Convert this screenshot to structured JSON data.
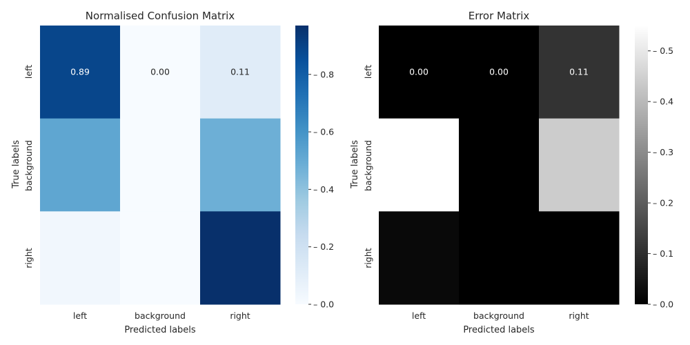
{
  "chart_data": [
    {
      "type": "heatmap",
      "title": "Normalised Confusion Matrix",
      "xlabel": "Predicted labels",
      "ylabel": "True labels",
      "x_categories": [
        "left",
        "background",
        "right"
      ],
      "y_categories": [
        "left",
        "background",
        "right"
      ],
      "values": [
        [
          0.89,
          0.0,
          0.11
        ],
        [
          0.52,
          0.0,
          0.48
        ],
        [
          0.03,
          0.0,
          0.97
        ]
      ],
      "annotated_rows": [
        0
      ],
      "cell_text": [
        "0.89",
        "0.00",
        "0.11"
      ],
      "colormap": "Blues",
      "colorbar": {
        "min": 0.0,
        "max": 0.97,
        "ticks": [
          "0.0",
          "0.2",
          "0.4",
          "0.6",
          "0.8"
        ]
      }
    },
    {
      "type": "heatmap",
      "title": "Error Matrix",
      "xlabel": "Predicted labels",
      "ylabel": "True labels",
      "x_categories": [
        "left",
        "background",
        "right"
      ],
      "y_categories": [
        "left",
        "background",
        "right"
      ],
      "values": [
        [
          0.0,
          0.0,
          0.11
        ],
        [
          0.55,
          0.0,
          0.44
        ],
        [
          0.02,
          0.0,
          0.0
        ]
      ],
      "annotated_rows": [
        0
      ],
      "cell_text": [
        "0.00",
        "0.00",
        "0.11"
      ],
      "colormap": "gray",
      "colorbar": {
        "min": 0.0,
        "max": 0.55,
        "ticks": [
          "0.0",
          "0.1",
          "0.2",
          "0.3",
          "0.4",
          "0.5"
        ]
      }
    }
  ]
}
